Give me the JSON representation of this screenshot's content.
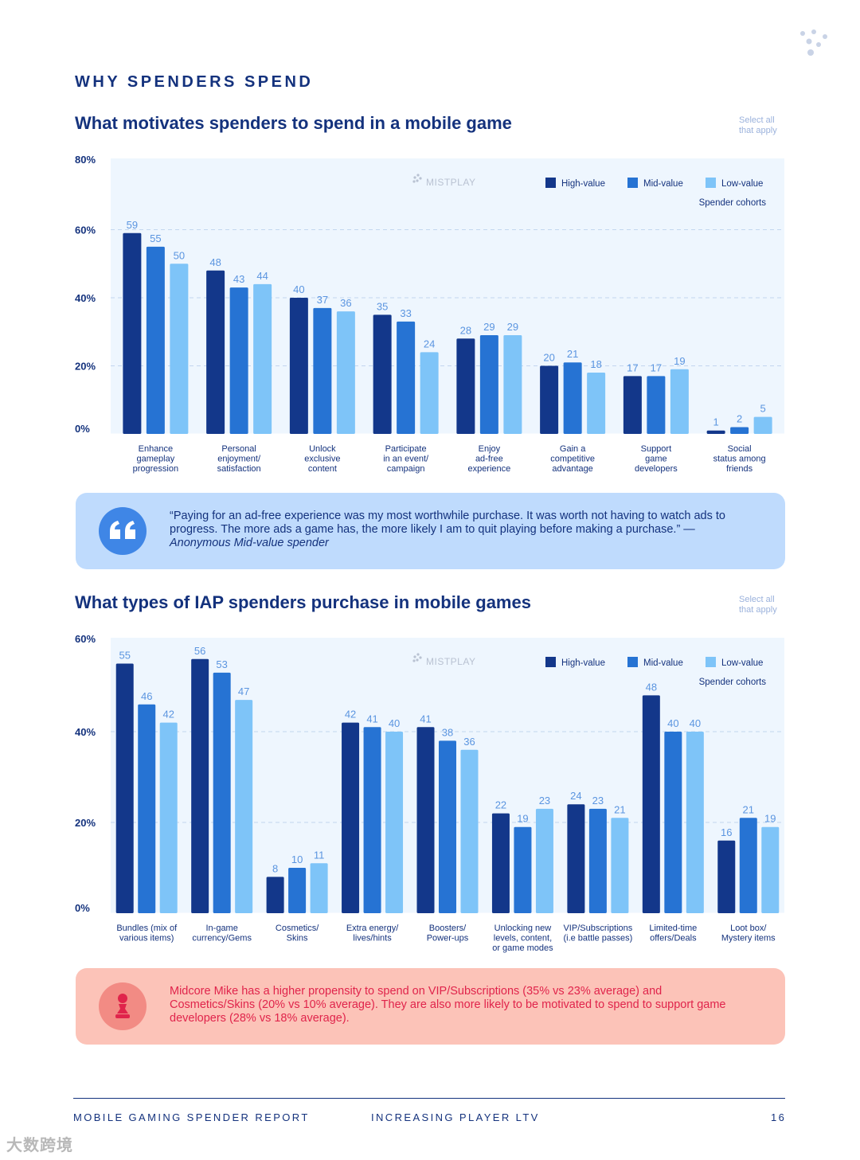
{
  "section_label": "WHY SPENDERS SPEND",
  "select_note": [
    "Select all",
    "that apply"
  ],
  "watermark_brand": "MISTPLAY",
  "legend": {
    "items": [
      "High-value",
      "Mid-value",
      "Low-value"
    ],
    "caption": "Spender cohorts"
  },
  "colors": {
    "high": "#13378a",
    "mid": "#2673d3",
    "low": "#7ec4f8",
    "label": "#5b95e0",
    "plot_bg": "#eef6fe"
  },
  "quote": {
    "text": "“Paying for an ad-free experience was my most worthwhile purchase. It was worth not having to watch ads to progress. The more ads a game has, the more likely I am to quit playing before making a purchase.” — ",
    "attribution": "Anonymous Mid-value spender"
  },
  "insight": {
    "text": "Midcore Mike has a higher propensity to spend on VIP/Subscriptions (35% vs 23% average) and Cosmetics/Skins (20% vs 10% average). They are also more likely to be motivated to spend to support game developers (28% vs 18% average)."
  },
  "footer": {
    "left": "MOBILE GAMING SPENDER REPORT",
    "center": "INCREASING PLAYER LTV",
    "page": "16"
  },
  "corner_watermark": "大数跨境",
  "chart_data": [
    {
      "type": "bar",
      "title": "What motivates spenders to spend in a mobile game",
      "xlabel": "",
      "ylabel": "",
      "ylim": [
        0,
        80
      ],
      "ytick_labels": [
        "0%",
        "20%",
        "40%",
        "60%",
        "80%"
      ],
      "categories": [
        [
          "Enhance",
          "gameplay",
          "progression"
        ],
        [
          "Personal",
          "enjoyment/",
          "satisfaction"
        ],
        [
          "Unlock",
          "exclusive",
          "content"
        ],
        [
          "Participate",
          "in an event/",
          "campaign"
        ],
        [
          "Enjoy",
          "ad-free",
          "experience"
        ],
        [
          "Gain a",
          "competitive",
          "advantage"
        ],
        [
          "Support",
          "game",
          "developers"
        ],
        [
          "Social",
          "status among",
          "friends"
        ]
      ],
      "series": [
        {
          "name": "High-value",
          "values": [
            59,
            48,
            40,
            35,
            28,
            20,
            17,
            1
          ]
        },
        {
          "name": "Mid-value",
          "values": [
            55,
            43,
            37,
            33,
            29,
            21,
            17,
            2
          ]
        },
        {
          "name": "Low-value",
          "values": [
            50,
            44,
            36,
            24,
            29,
            18,
            19,
            5
          ]
        }
      ]
    },
    {
      "type": "bar",
      "title": "What types of IAP spenders purchase in mobile games",
      "xlabel": "",
      "ylabel": "",
      "ylim": [
        0,
        60
      ],
      "ytick_labels": [
        "0%",
        "20%",
        "40%",
        "60%"
      ],
      "categories": [
        [
          "Bundles (mix of",
          "various items)"
        ],
        [
          "In-game",
          "currency/Gems"
        ],
        [
          "Cosmetics/",
          "Skins"
        ],
        [
          "Extra energy/",
          "lives/hints"
        ],
        [
          "Boosters/",
          "Power-ups"
        ],
        [
          "Unlocking new",
          "levels, content,",
          "or game modes"
        ],
        [
          "VIP/Subscriptions",
          "(i.e battle passes)"
        ],
        [
          "Limited-time",
          "offers/Deals"
        ],
        [
          "Loot box/",
          "Mystery items"
        ]
      ],
      "series": [
        {
          "name": "High-value",
          "values": [
            55,
            56,
            8,
            42,
            41,
            22,
            24,
            48,
            16
          ]
        },
        {
          "name": "Mid-value",
          "values": [
            46,
            53,
            10,
            41,
            38,
            19,
            23,
            40,
            21
          ]
        },
        {
          "name": "Low-value",
          "values": [
            42,
            47,
            11,
            40,
            36,
            23,
            21,
            40,
            19
          ]
        }
      ]
    }
  ]
}
